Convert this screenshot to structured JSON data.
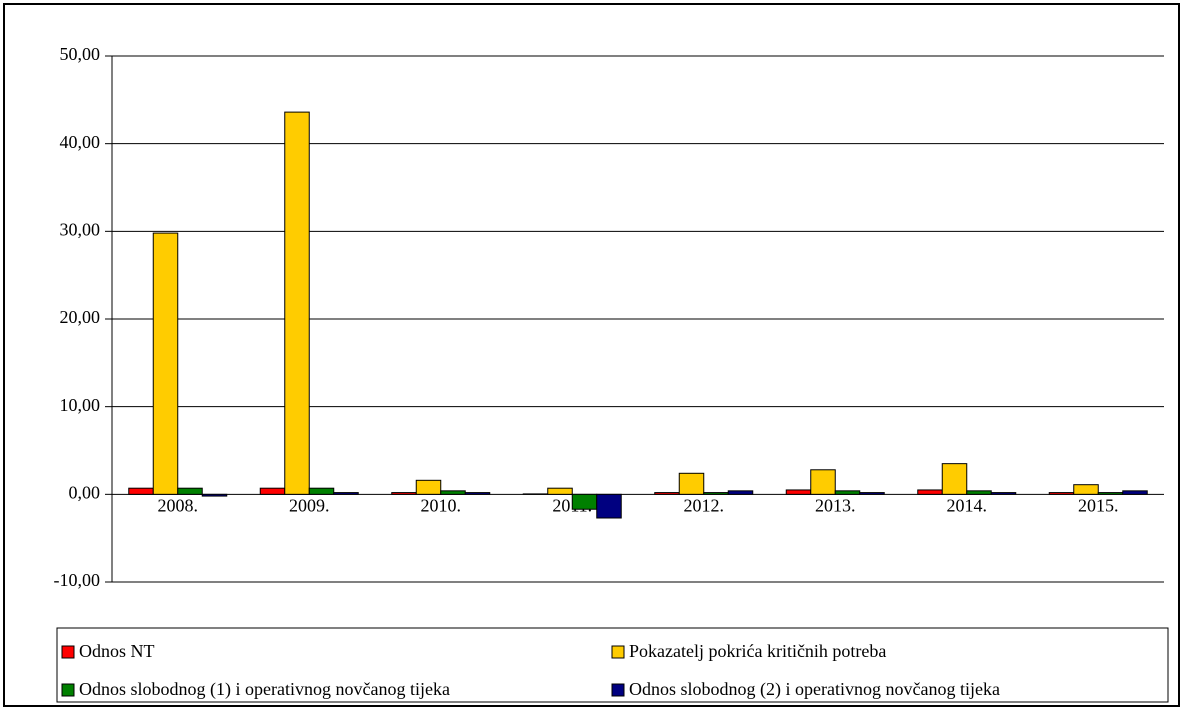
{
  "chart_data": {
    "type": "bar",
    "categories": [
      "2008.",
      "2009.",
      "2010.",
      "2011.",
      "2012.",
      "2013.",
      "2014.",
      "2015."
    ],
    "series": [
      {
        "name": "Odnos NT",
        "color": "#ff0000",
        "values": [
          0.7,
          0.7,
          0.2,
          0.05,
          0.2,
          0.5,
          0.5,
          0.2
        ]
      },
      {
        "name": "Pokazatelj pokrića kritičnih potreba",
        "color": "#ffcc00",
        "values": [
          29.8,
          43.6,
          1.6,
          0.7,
          2.4,
          2.8,
          3.5,
          1.1
        ]
      },
      {
        "name": "Odnos slobodnog (1) i operativnog novčanog tijeka",
        "color": "#008000",
        "values": [
          0.7,
          0.7,
          0.4,
          -1.7,
          0.2,
          0.4,
          0.4,
          0.2
        ]
      },
      {
        "name": "Odnos slobodnog (2) i operativnog novčanog tijeka",
        "color": "#000080",
        "values": [
          -0.2,
          0.2,
          0.2,
          -2.7,
          0.4,
          0.2,
          0.2,
          0.4
        ]
      }
    ],
    "ylim": [
      -10,
      50
    ],
    "yticks": [
      {
        "value": -10,
        "label": "-10,00"
      },
      {
        "value": 0,
        "label": "0,00"
      },
      {
        "value": 10,
        "label": "10,00"
      },
      {
        "value": 20,
        "label": "20,00"
      },
      {
        "value": 30,
        "label": "30,00"
      },
      {
        "value": 40,
        "label": "40,00"
      },
      {
        "value": 50,
        "label": "50,00"
      }
    ],
    "grid": true,
    "legend": "bottom"
  }
}
